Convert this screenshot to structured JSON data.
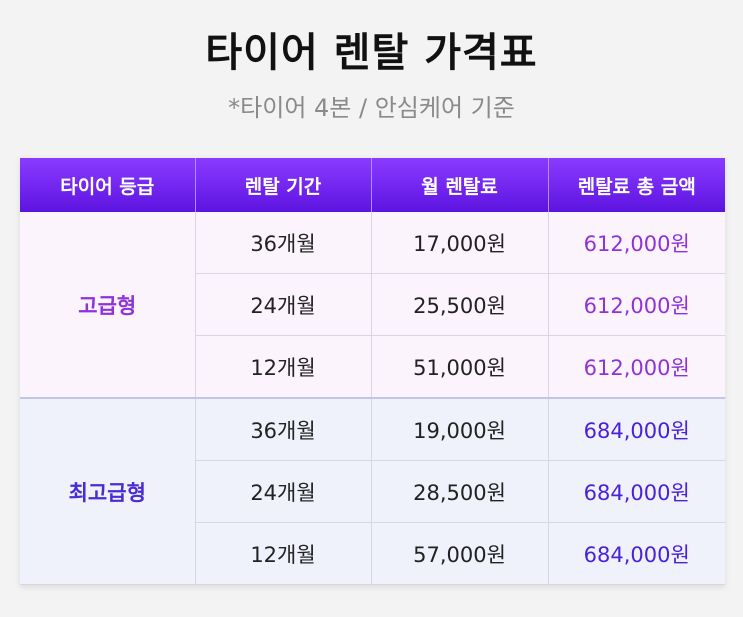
{
  "title": "타이어 렌탈 가격표",
  "subtitle": "*타이어 4본 / 안심케어 기준",
  "table": {
    "headers": [
      "타이어 등급",
      "렌탈 기간",
      "월 렌탈료",
      "렌탈료 총 금액"
    ],
    "groups": [
      {
        "grade": "고급형",
        "rows": [
          {
            "period": "36개월",
            "monthly": "17,000원",
            "total": "612,000원"
          },
          {
            "period": "24개월",
            "monthly": "25,500원",
            "total": "612,000원"
          },
          {
            "period": "12개월",
            "monthly": "51,000원",
            "total": "612,000원"
          }
        ]
      },
      {
        "grade": "최고급형",
        "rows": [
          {
            "period": "36개월",
            "monthly": "19,000원",
            "total": "684,000원"
          },
          {
            "period": "24개월",
            "monthly": "28,500원",
            "total": "684,000원"
          },
          {
            "period": "12개월",
            "monthly": "57,000원",
            "total": "684,000원"
          }
        ]
      }
    ]
  },
  "colors": {
    "header_top": "#8a3bff",
    "header_bottom": "#5d14e0",
    "premium_accent": "#8f32d9",
    "top_premium_accent": "#4a2bd6"
  }
}
